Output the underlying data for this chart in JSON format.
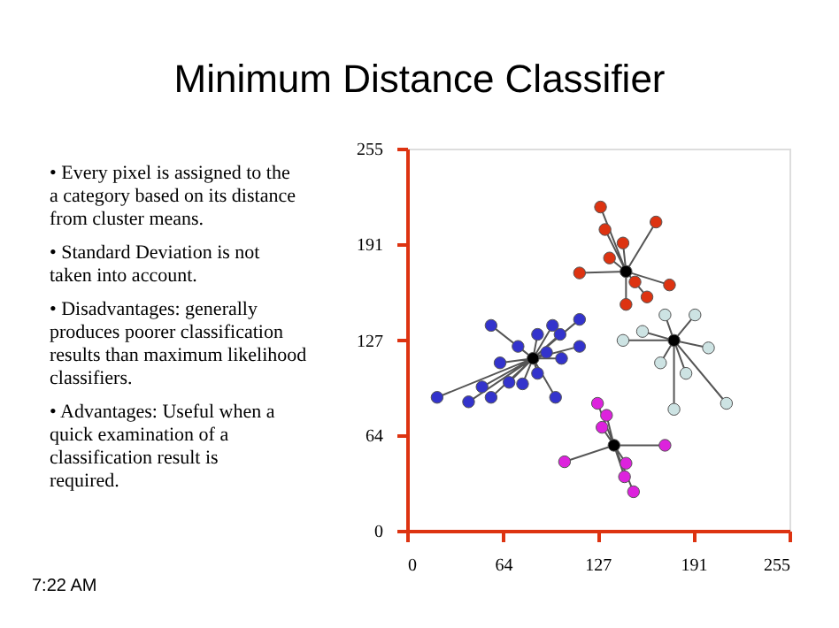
{
  "chart_data": {
    "type": "scatter",
    "title": "Minimum Distance Classifier",
    "annotations": [
      "• Every pixel is assigned to the a category based on its distance from cluster means.",
      "• Standard Deviation is not taken into account.",
      "• Disadvantages: generally produces poorer classification results than maximum likelihood classifiers.",
      "• Advantages: Useful when a quick examination of a classification result is required.",
      "7:22 AM"
    ],
    "xlim": [
      0,
      255
    ],
    "ylim": [
      0,
      255
    ],
    "xticks": [
      0,
      64,
      127,
      191,
      255
    ],
    "yticks": [
      0,
      64,
      127,
      191,
      255
    ],
    "marker": "circle",
    "series": [
      {
        "type": "line",
        "marker": "none",
        "color": "#555555",
        "x": [
          146,
          129,
          146,
          166,
          146,
          132,
          146,
          144,
          146,
          135,
          146,
          115,
          146,
          152,
          146,
          175,
          146,
          160,
          146,
          146
        ],
        "values": [
          173,
          216,
          173,
          206,
          173,
          201,
          173,
          192,
          173,
          182,
          173,
          172,
          173,
          166,
          173,
          164,
          173,
          156,
          173,
          151
        ]
      },
      {
        "type": "line",
        "marker": "none",
        "color": "#555555",
        "x": [
          178,
          172,
          178,
          192,
          178,
          157,
          178,
          144,
          178,
          201,
          178,
          169,
          178,
          186,
          178,
          178,
          178,
          213
        ],
        "values": [
          127,
          144,
          127,
          144,
          127,
          133,
          127,
          127,
          127,
          122,
          127,
          112,
          127,
          105,
          127,
          81,
          127,
          85
        ]
      },
      {
        "type": "line",
        "marker": "none",
        "color": "#555555",
        "x": [
          84,
          56,
          84,
          115,
          84,
          97,
          84,
          87,
          84,
          102,
          84,
          74,
          84,
          93,
          84,
          115,
          84,
          62,
          84,
          103,
          84,
          87,
          84,
          68,
          84,
          77,
          84,
          50,
          84,
          56,
          84,
          41,
          84,
          20,
          84,
          99
        ],
        "values": [
          115,
          137,
          115,
          141,
          115,
          137,
          115,
          131,
          115,
          131,
          115,
          123,
          115,
          119,
          115,
          123,
          115,
          112,
          115,
          115,
          115,
          105,
          115,
          99,
          115,
          98,
          115,
          96,
          115,
          89,
          115,
          86,
          115,
          89,
          115,
          89
        ]
      },
      {
        "type": "line",
        "marker": "none",
        "color": "#555555",
        "x": [
          138,
          127,
          138,
          133,
          138,
          130,
          138,
          172,
          138,
          105,
          138,
          146,
          138,
          145,
          138,
          151
        ],
        "values": [
          57,
          85,
          57,
          77,
          57,
          69,
          57,
          57,
          57,
          46,
          57,
          45,
          57,
          36,
          57,
          26
        ]
      },
      {
        "color": "#dd3311",
        "x": [
          129,
          166,
          132,
          144,
          135,
          115,
          152,
          175,
          160,
          146
        ],
        "values": [
          216,
          206,
          201,
          192,
          182,
          172,
          166,
          164,
          156,
          151
        ]
      },
      {
        "color": "#cde3e3",
        "x": [
          172,
          192,
          157,
          144,
          201,
          169,
          186,
          178,
          213
        ],
        "values": [
          144,
          144,
          133,
          127,
          122,
          112,
          105,
          81,
          85
        ]
      },
      {
        "color": "#3333cc",
        "x": [
          56,
          115,
          97,
          87,
          102,
          74,
          93,
          115,
          62,
          103,
          87,
          68,
          77,
          50,
          56,
          41,
          20,
          99
        ],
        "values": [
          137,
          141,
          137,
          131,
          131,
          123,
          119,
          123,
          112,
          115,
          105,
          99,
          98,
          96,
          89,
          86,
          89,
          89
        ]
      },
      {
        "color": "#dd22dd",
        "x": [
          127,
          133,
          130,
          172,
          105,
          146,
          145,
          151
        ],
        "values": [
          85,
          77,
          69,
          57,
          46,
          45,
          36,
          26
        ]
      },
      {
        "color": "#000000",
        "x": [
          146,
          178,
          84,
          138
        ],
        "values": [
          173,
          127,
          115,
          57
        ]
      }
    ]
  }
}
